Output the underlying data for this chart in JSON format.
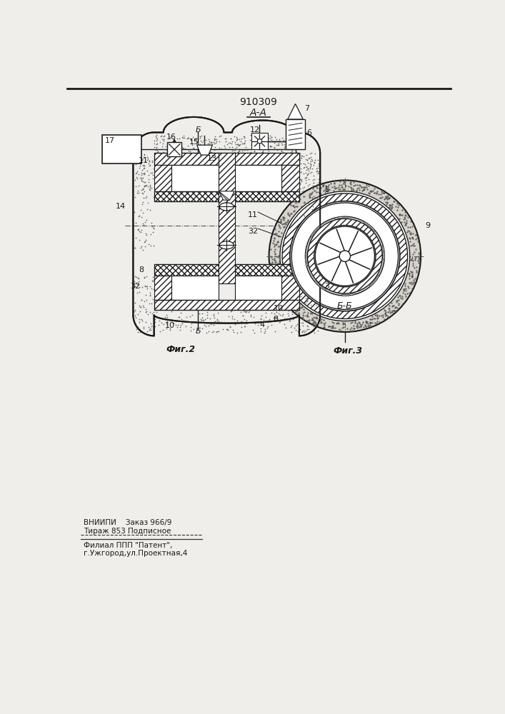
{
  "title": "910309",
  "fig2_label": "А-А",
  "fig2_caption": "Фиг.2",
  "fig3_caption": "Фиг.3",
  "fig3_section": "Б-Б",
  "footer_line1": "ВНИИПИ    Заказ 966/9",
  "footer_line2": "Тираж 853 Подписное",
  "footer_line3": "Филиал ППП \"Патент\",",
  "footer_line4": "г.Ужгород,ул.Проектная,4",
  "bg_color": "#f0eeea",
  "lc": "#1a1a1a"
}
